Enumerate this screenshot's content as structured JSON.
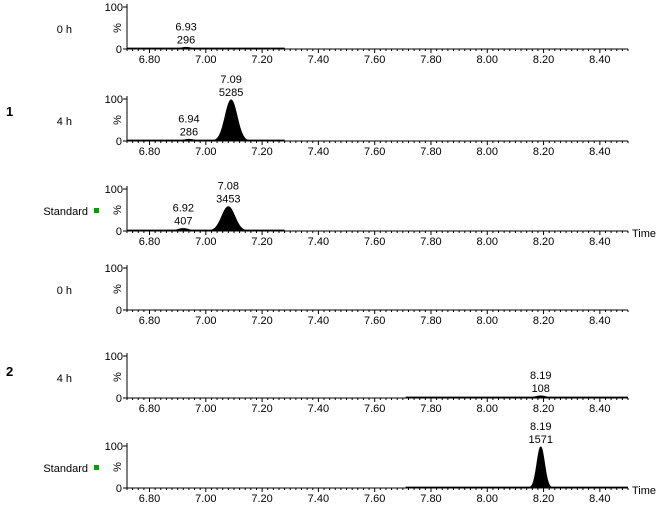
{
  "chart_data": {
    "type": "line",
    "x_label": "Time",
    "x_range": [
      6.72,
      8.5
    ],
    "x_ticks": [
      "6.80",
      "7.00",
      "7.20",
      "7.40",
      "7.60",
      "7.80",
      "8.00",
      "8.20",
      "8.40"
    ],
    "y_range": [
      0,
      100
    ],
    "y_ticks": [
      "0",
      "100"
    ],
    "y_label": "%",
    "groups": [
      {
        "label": "1",
        "traces": [
          0,
          1,
          2
        ]
      },
      {
        "label": "2",
        "traces": [
          3,
          4,
          5
        ]
      }
    ],
    "traces": [
      {
        "label": "0 h",
        "marker": false,
        "baseline_span": [
          6.72,
          7.28
        ],
        "peaks": [
          {
            "rt": "6.93",
            "area": "296",
            "x": 6.93,
            "height": 4,
            "width": 0.045
          }
        ]
      },
      {
        "label": "4 h",
        "marker": false,
        "baseline_span": [
          6.72,
          7.28
        ],
        "peaks": [
          {
            "rt": "6.94",
            "area": "286",
            "x": 6.94,
            "height": 4,
            "width": 0.045
          },
          {
            "rt": "7.09",
            "area": "5285",
            "x": 7.09,
            "height": 98,
            "width": 0.055
          }
        ]
      },
      {
        "label": "Standard",
        "marker": true,
        "baseline_span": [
          6.72,
          7.28
        ],
        "peaks": [
          {
            "rt": "6.92",
            "area": "407",
            "x": 6.92,
            "height": 6,
            "width": 0.05
          },
          {
            "rt": "7.08",
            "area": "3453",
            "x": 7.08,
            "height": 58,
            "width": 0.06
          }
        ]
      },
      {
        "label": "0 h",
        "marker": false,
        "baseline_span": null,
        "peaks": []
      },
      {
        "label": "4 h",
        "marker": false,
        "baseline_span": [
          7.71,
          8.5
        ],
        "peaks": [
          {
            "rt": "8.19",
            "area": "108",
            "x": 8.19,
            "height": 5,
            "width": 0.05
          }
        ]
      },
      {
        "label": "Standard",
        "marker": true,
        "baseline_span": [
          7.71,
          8.5
        ],
        "peaks": [
          {
            "rt": "8.19",
            "area": "1571",
            "x": 8.19,
            "height": 98,
            "width": 0.035
          }
        ]
      }
    ],
    "marker_color": "#00a000",
    "fill_color": "#000000"
  }
}
